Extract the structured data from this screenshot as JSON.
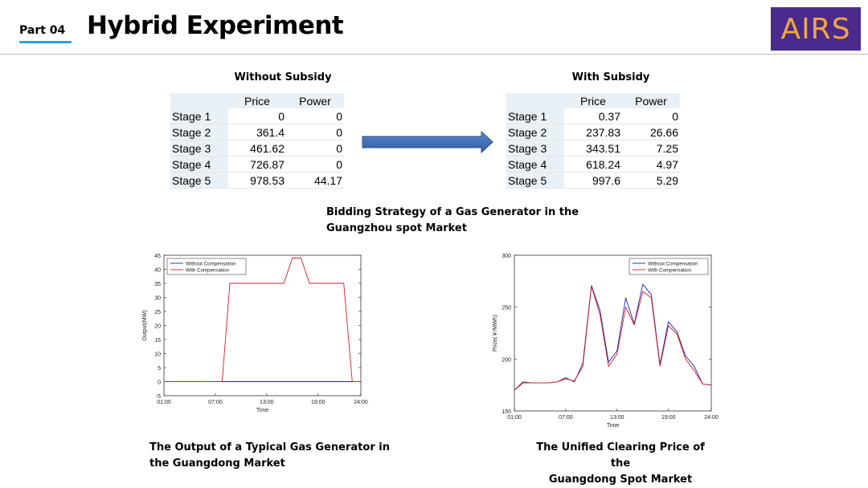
{
  "header": {
    "part": "Part 04",
    "title": "Hybrid Experiment",
    "logo_text": "AIRS",
    "accent": "#2f9fd8",
    "logo_bg": "#4a2a8c",
    "logo_fg": "#f2a640"
  },
  "tables": {
    "without": {
      "title": "Without Subsidy",
      "col_price": "Price",
      "col_power": "Power",
      "rows": [
        {
          "stage": "Stage 1",
          "price": "0",
          "power": "0"
        },
        {
          "stage": "Stage 2",
          "price": "361.4",
          "power": "0"
        },
        {
          "stage": "Stage 3",
          "price": "461.62",
          "power": "0"
        },
        {
          "stage": "Stage 4",
          "price": "726.87",
          "power": "0"
        },
        {
          "stage": "Stage 5",
          "price": "978.53",
          "power": "44.17"
        }
      ]
    },
    "with": {
      "title": "With Subsidy",
      "col_price": "Price",
      "col_power": "Power",
      "rows": [
        {
          "stage": "Stage 1",
          "price": "0.37",
          "power": "0"
        },
        {
          "stage": "Stage 2",
          "price": "237.83",
          "power": "26.66"
        },
        {
          "stage": "Stage 3",
          "price": "343.51",
          "power": "7.25"
        },
        {
          "stage": "Stage 4",
          "price": "618.24",
          "power": "4.97"
        },
        {
          "stage": "Stage 5",
          "price": "997.6",
          "power": "5.29"
        }
      ]
    }
  },
  "captions": {
    "bidding_line1": "Bidding Strategy of a Gas Generator in the",
    "bidding_line2": "Guangzhou spot Market",
    "output_line1": "The Output of a Typical Gas Generator in",
    "output_line2": "the Guangdong Market",
    "price_line1": "The Unified Clearing Price of the",
    "price_line2": "Guangdong Spot Market"
  },
  "chart_data": [
    {
      "type": "line",
      "xlabel": "Time",
      "ylabel": "Output(MW)",
      "xticks": [
        "01:00",
        "07:00",
        "13:00",
        "19:00",
        "24:00"
      ],
      "xlim": [
        1,
        24
      ],
      "ylim": [
        -5,
        45
      ],
      "yticks": [
        -5,
        0,
        5,
        10,
        15,
        20,
        25,
        30,
        35,
        40,
        45
      ],
      "legend_position": "top-left",
      "series": [
        {
          "name": "Without Compensation",
          "color": "#1f1fb4",
          "x": [
            1,
            24
          ],
          "y": [
            0,
            0
          ]
        },
        {
          "name": "With Compensation",
          "color": "#d11f1f",
          "x": [
            1,
            7.8,
            8.7,
            15,
            16,
            17,
            18,
            22,
            23,
            24
          ],
          "y": [
            0,
            0,
            35,
            35,
            44,
            44,
            35,
            35,
            0,
            0
          ]
        }
      ]
    },
    {
      "type": "line",
      "xlabel": "Time",
      "ylabel": "Price(￥/MWh)",
      "xticks": [
        "01:00",
        "07:00",
        "13:00",
        "19:00",
        "24:00"
      ],
      "xlim": [
        1,
        24
      ],
      "ylim": [
        150,
        300
      ],
      "yticks": [
        150,
        200,
        250,
        300
      ],
      "legend_position": "top-right",
      "series": [
        {
          "name": "Without Compensation",
          "color": "#1f1fb4",
          "x": [
            1,
            2,
            3,
            4,
            5,
            6,
            7,
            8,
            9,
            10,
            11,
            12,
            13,
            14,
            15,
            16,
            17,
            18,
            19,
            20,
            21,
            22,
            23,
            24
          ],
          "y": [
            170,
            178,
            177,
            177,
            177,
            178,
            182,
            178,
            196,
            271,
            247,
            197,
            208,
            259,
            234,
            272,
            262,
            195,
            236,
            226,
            203,
            193,
            176,
            175
          ]
        },
        {
          "name": "With Compensation",
          "color": "#d11f1f",
          "x": [
            1,
            2,
            3,
            4,
            5,
            6,
            7,
            8,
            9,
            10,
            11,
            12,
            13,
            14,
            15,
            16,
            17,
            18,
            19,
            20,
            21,
            22,
            23,
            24
          ],
          "y": [
            170,
            177,
            177,
            177,
            177,
            178,
            181,
            179,
            193,
            270,
            243,
            193,
            205,
            250,
            233,
            265,
            259,
            193,
            232,
            224,
            200,
            189,
            176,
            175
          ]
        }
      ]
    }
  ]
}
